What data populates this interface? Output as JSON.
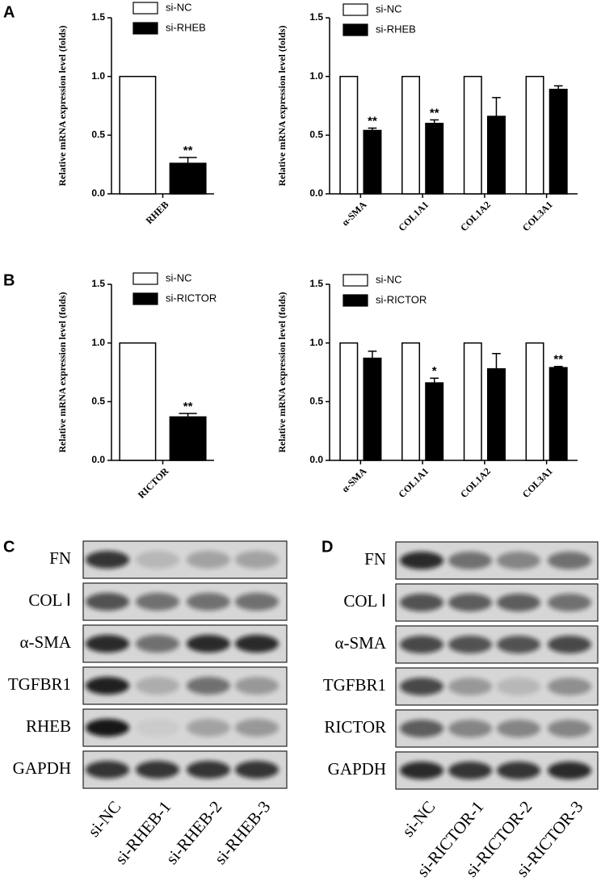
{
  "panels": [
    "A",
    "B",
    "C",
    "D"
  ],
  "chart_data": [
    {
      "type": "bar",
      "ylabel": "Relative mRNA expression level (folds)",
      "categories": [
        "RHEB"
      ],
      "series": [
        {
          "name": "si-NC",
          "color": "#ffffff",
          "values": [
            1.0
          ]
        },
        {
          "name": "si-RHEB",
          "color": "#000000",
          "values": [
            0.26
          ],
          "errors": [
            0.05
          ]
        }
      ],
      "annotations": [
        "**"
      ],
      "ylim": [
        0,
        1.5
      ],
      "yticks": [
        {
          "value": 0,
          "label": "0.0"
        },
        0.5,
        {
          "value": 1,
          "label": "1.0"
        },
        1.5
      ]
    },
    {
      "type": "bar",
      "ylabel": "Relative mRNA expression level (folds)",
      "categories": [
        "α-SMA",
        "COL1A1",
        "COL1A2",
        "COL3A1"
      ],
      "series": [
        {
          "name": "si-NC",
          "color": "#ffffff",
          "values": [
            1.0,
            1.0,
            1.0,
            1.0
          ]
        },
        {
          "name": "si-RHEB",
          "color": "#000000",
          "values": [
            0.54,
            0.6,
            0.66,
            0.89
          ],
          "errors": [
            0.02,
            0.03,
            0.16,
            0.03
          ]
        }
      ],
      "annotations": [
        "**",
        "**",
        null,
        null
      ],
      "ylim": [
        0,
        1.5
      ],
      "yticks": [
        {
          "value": 0,
          "label": "0.0"
        },
        0.5,
        {
          "value": 1,
          "label": "1.0"
        },
        1.5
      ]
    },
    {
      "type": "bar",
      "ylabel": "Relative mRNA expression level (folds)",
      "categories": [
        "RICTOR"
      ],
      "series": [
        {
          "name": "si-NC",
          "color": "#ffffff",
          "values": [
            1.0
          ]
        },
        {
          "name": "si-RICTOR",
          "color": "#000000",
          "values": [
            0.37
          ],
          "errors": [
            0.03
          ]
        }
      ],
      "annotations": [
        "**"
      ],
      "ylim": [
        0,
        1.5
      ],
      "yticks": [
        {
          "value": 0,
          "label": "0.0"
        },
        0.5,
        {
          "value": 1,
          "label": "1.0"
        },
        1.5
      ]
    },
    {
      "type": "bar",
      "ylabel": "Relative mRNA expression level (folds)",
      "categories": [
        "α-SMA",
        "COL1A1",
        "COL1A2",
        "COL3A1"
      ],
      "series": [
        {
          "name": "si-NC",
          "color": "#ffffff",
          "values": [
            1.0,
            1.0,
            1.0,
            1.0
          ]
        },
        {
          "name": "si-RICTOR",
          "color": "#000000",
          "values": [
            0.87,
            0.66,
            0.78,
            0.79
          ],
          "errors": [
            0.06,
            0.04,
            0.13,
            0.01
          ]
        }
      ],
      "annotations": [
        null,
        "*",
        null,
        "**"
      ],
      "ylim": [
        0,
        1.5
      ],
      "yticks": [
        {
          "value": 0,
          "label": "0.0"
        },
        0.5,
        {
          "value": 1,
          "label": "1.0"
        },
        1.5
      ]
    }
  ],
  "blots": [
    {
      "rows": [
        "FN",
        "COL Ⅰ",
        "α-SMA",
        "TGFBR1",
        "RHEB",
        "GAPDH"
      ],
      "lanes": [
        "si-NC",
        "si-RHEB-1",
        "si-RHEB-2",
        "si-RHEB-3"
      ]
    },
    {
      "rows": [
        "FN",
        "COL Ⅰ",
        "α-SMA",
        "TGFBR1",
        "RICTOR",
        "GAPDH"
      ],
      "lanes": [
        "si-NC",
        "si-RICTOR-1",
        "si-RICTOR-2",
        "si-RICTOR-3"
      ]
    }
  ]
}
